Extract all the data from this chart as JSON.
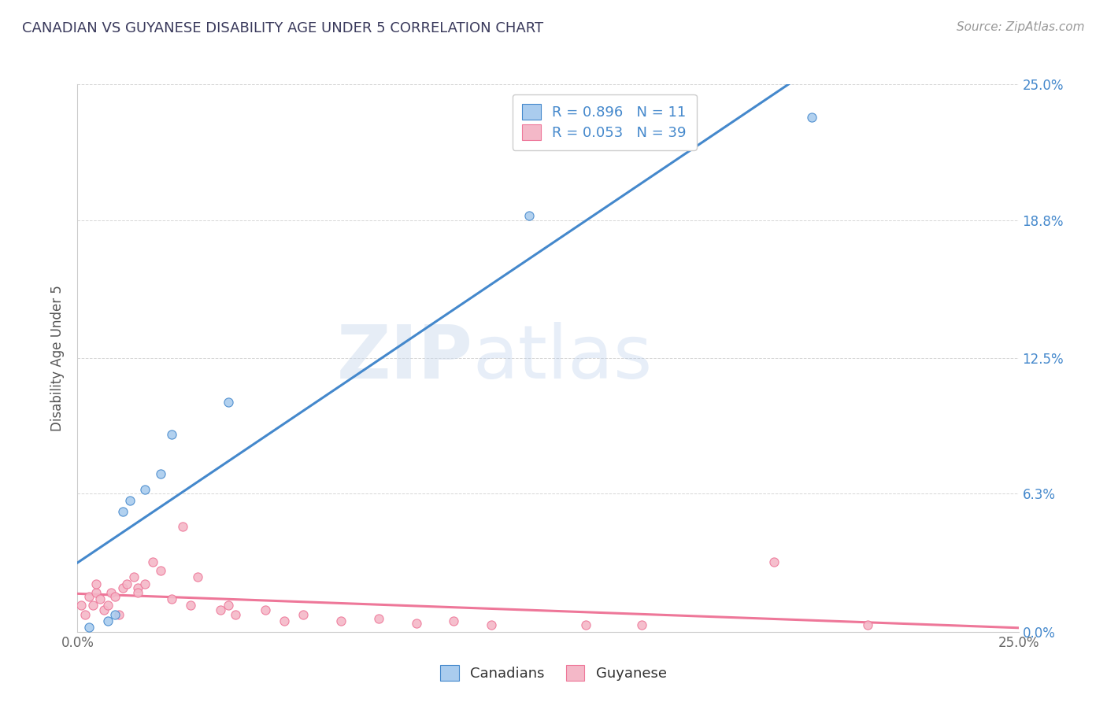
{
  "title": "CANADIAN VS GUYANESE DISABILITY AGE UNDER 5 CORRELATION CHART",
  "source": "Source: ZipAtlas.com",
  "ylabel": "Disability Age Under 5",
  "xlabel": "",
  "xlim": [
    0.0,
    0.25
  ],
  "ylim": [
    0.0,
    0.25
  ],
  "xtick_labels": [
    "0.0%",
    "25.0%"
  ],
  "ytick_labels": [
    "0.0%",
    "6.3%",
    "12.5%",
    "18.8%",
    "25.0%"
  ],
  "ytick_values": [
    0.0,
    0.063,
    0.125,
    0.188,
    0.25
  ],
  "background_color": "#ffffff",
  "grid_color": "#cccccc",
  "watermark_zip": "ZIP",
  "watermark_atlas": "atlas",
  "canadian_R": 0.896,
  "canadian_N": 11,
  "guyanese_R": 0.053,
  "guyanese_N": 39,
  "canadian_color": "#aaccee",
  "guyanese_color": "#f4b8c8",
  "canadian_line_color": "#4488cc",
  "guyanese_line_color": "#ee7799",
  "canadian_x": [
    0.003,
    0.008,
    0.01,
    0.012,
    0.014,
    0.018,
    0.022,
    0.025,
    0.04,
    0.12,
    0.195
  ],
  "canadian_y": [
    0.002,
    0.005,
    0.008,
    0.055,
    0.06,
    0.065,
    0.072,
    0.09,
    0.105,
    0.19,
    0.235
  ],
  "guyanese_x": [
    0.001,
    0.002,
    0.003,
    0.004,
    0.005,
    0.005,
    0.006,
    0.007,
    0.008,
    0.009,
    0.01,
    0.011,
    0.012,
    0.013,
    0.015,
    0.016,
    0.016,
    0.018,
    0.02,
    0.022,
    0.025,
    0.028,
    0.03,
    0.032,
    0.038,
    0.04,
    0.042,
    0.05,
    0.055,
    0.06,
    0.07,
    0.08,
    0.09,
    0.1,
    0.11,
    0.135,
    0.15,
    0.185,
    0.21
  ],
  "guyanese_y": [
    0.012,
    0.008,
    0.016,
    0.012,
    0.018,
    0.022,
    0.015,
    0.01,
    0.012,
    0.018,
    0.016,
    0.008,
    0.02,
    0.022,
    0.025,
    0.02,
    0.018,
    0.022,
    0.032,
    0.028,
    0.015,
    0.048,
    0.012,
    0.025,
    0.01,
    0.012,
    0.008,
    0.01,
    0.005,
    0.008,
    0.005,
    0.006,
    0.004,
    0.005,
    0.003,
    0.003,
    0.003,
    0.032,
    0.003
  ],
  "legend_labels": [
    "Canadians",
    "Guyanese"
  ],
  "title_color": "#3a3a5c",
  "axis_label_color": "#555555",
  "tick_color": "#666666",
  "right_tick_color": "#4488cc"
}
